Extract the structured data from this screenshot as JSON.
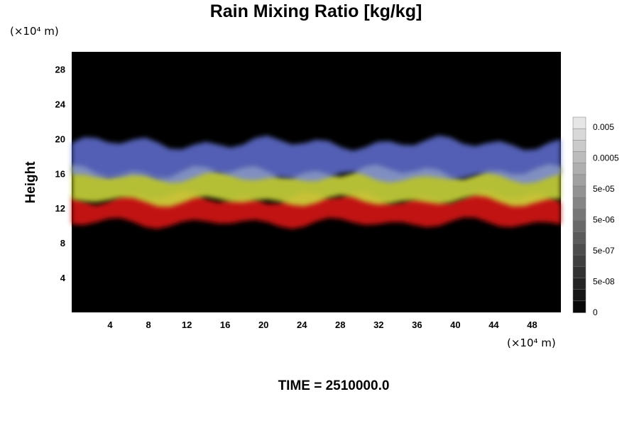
{
  "chart_data": {
    "type": "heatmap",
    "title": "Rain Mixing Ratio [kg/kg]",
    "xlabel": "",
    "ylabel": "Height",
    "x_unit": "(×10⁴ m)",
    "y_unit": "(×10⁴ m)",
    "xlim": [
      0,
      51
    ],
    "ylim": [
      0,
      30
    ],
    "xticks": [
      4,
      8,
      12,
      16,
      20,
      24,
      28,
      32,
      36,
      40,
      44,
      48
    ],
    "yticks": [
      4,
      8,
      12,
      16,
      20,
      24,
      28
    ],
    "background": "#000000",
    "bands": [
      {
        "color": "blue",
        "hex": "#6e7ff0",
        "y_bottom": 15.5,
        "y_top": 19.5
      },
      {
        "color": "yellow",
        "hex": "#c9d43a",
        "y_bottom": 12.8,
        "y_top": 16.2
      },
      {
        "color": "red",
        "hex": "#d81818",
        "y_bottom": 10.3,
        "y_top": 13.2
      }
    ],
    "colorbar": {
      "labels": [
        "0.005",
        "0.0005",
        "5e-05",
        "5e-06",
        "5e-07",
        "5e-08",
        "0"
      ],
      "levels": 17
    },
    "grid": false
  },
  "footer": {
    "time_label": "TIME = 2510000.0"
  }
}
